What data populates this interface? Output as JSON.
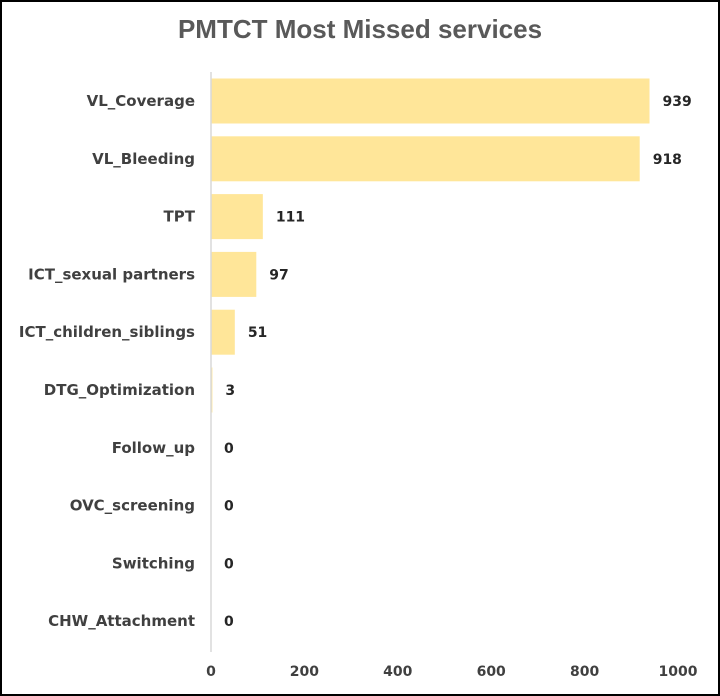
{
  "chart_data": {
    "type": "bar",
    "orientation": "horizontal",
    "title": "PMTCT Most Missed services",
    "categories": [
      "VL_Coverage",
      "VL_Bleeding",
      "TPT",
      "ICT_sexual partners",
      "ICT_children_siblings",
      "DTG_Optimization",
      "Follow_up",
      "OVC_screening",
      "Switching",
      "CHW_Attachment"
    ],
    "values": [
      939,
      918,
      111,
      97,
      51,
      3,
      0,
      0,
      0,
      0
    ],
    "xlim": [
      0,
      1000
    ],
    "xticks": [
      "0",
      "200",
      "400",
      "600",
      "800",
      "1000"
    ],
    "xlabel": "",
    "ylabel": "",
    "grid": false,
    "bar_color": "#FFE699",
    "axis_color": "#D9D9D9"
  }
}
